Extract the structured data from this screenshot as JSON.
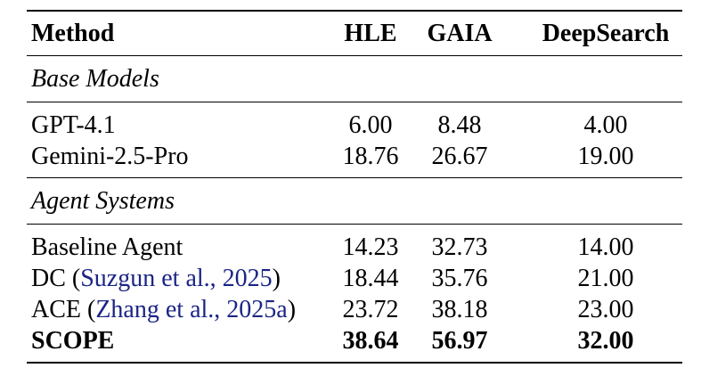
{
  "colors": {
    "citation_blue": "#1b2585",
    "text": "#000000",
    "background": "#ffffff"
  },
  "table": {
    "columns": [
      {
        "label": "Method"
      },
      {
        "label": "HLE"
      },
      {
        "label": "GAIA"
      },
      {
        "label": "DeepSearch"
      }
    ],
    "sections": [
      {
        "label": "Base Models",
        "rows": [
          {
            "method": "GPT-4.1",
            "hle": "6.00",
            "gaia": "8.48",
            "deepsearch": "4.00"
          },
          {
            "method": "Gemini-2.5-Pro",
            "hle": "18.76",
            "gaia": "26.67",
            "deepsearch": "19.00"
          }
        ]
      },
      {
        "label": "Agent Systems",
        "rows": [
          {
            "method": "Baseline Agent",
            "hle": "14.23",
            "gaia": "32.73",
            "deepsearch": "14.00"
          },
          {
            "method_prefix": "DC (",
            "citation": "Suzgun et al., 2025",
            "method_suffix": ")",
            "hle": "18.44",
            "gaia": "35.76",
            "deepsearch": "21.00"
          },
          {
            "method_prefix": "ACE (",
            "citation": "Zhang et al., 2025a",
            "method_suffix": ")",
            "hle": "23.72",
            "gaia": "38.18",
            "deepsearch": "23.00"
          },
          {
            "method": "SCOPE",
            "hle": "38.64",
            "gaia": "56.97",
            "deepsearch": "32.00"
          }
        ]
      }
    ]
  }
}
